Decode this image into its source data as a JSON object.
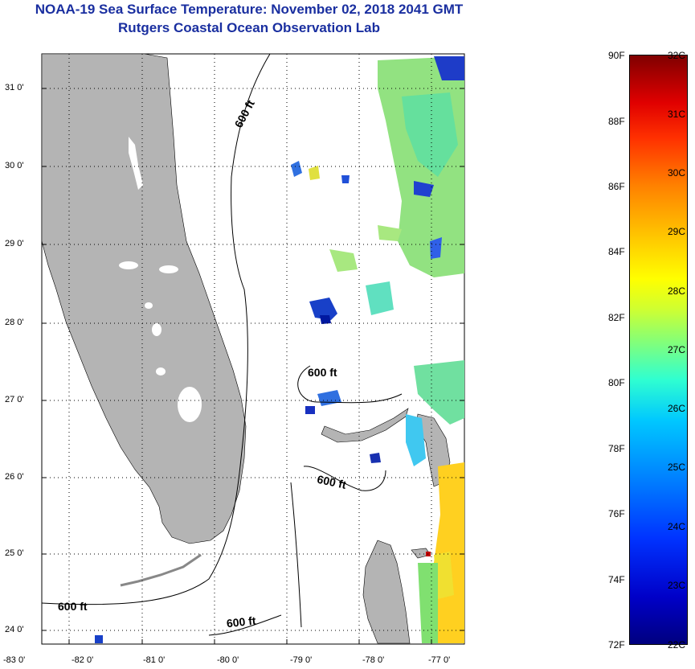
{
  "title": "NOAA-19 Sea Surface Temperature:  November 02, 2018 2041 GMT",
  "subtitle": "Rutgers Coastal Ocean Observation Lab",
  "map": {
    "lon_labels": [
      "-83 0'",
      "-82 0'",
      "-81 0'",
      "-80 0'",
      "-79 0'",
      "-78 0'",
      "-77 0'"
    ],
    "lat_labels": [
      "31 0'",
      "30 0'",
      "29 0'",
      "28 0'",
      "27 0'",
      "26 0'",
      "25 0'",
      "24 0'"
    ],
    "contour_labels": [
      "600 ft",
      "600 ft",
      "600 ft",
      "600 ft",
      "600 ft"
    ],
    "land_color": "#b4b4b4",
    "ocean_color": "#ffffff"
  },
  "colorbar": {
    "f_labels": [
      "90F",
      "88F",
      "86F",
      "84F",
      "82F",
      "80F",
      "78F",
      "76F",
      "74F",
      "72F"
    ],
    "c_labels": [
      "32C",
      "31C",
      "30C",
      "29C",
      "28C",
      "27C",
      "26C",
      "25C",
      "24C",
      "23C",
      "22C"
    ],
    "min_c": 22,
    "max_c": 32
  }
}
